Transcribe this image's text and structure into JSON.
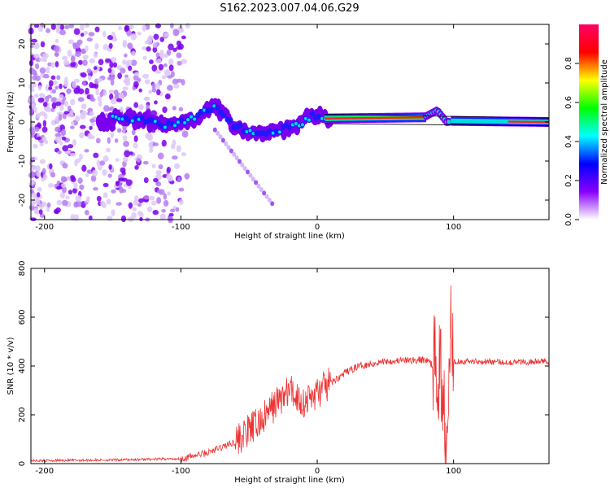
{
  "title": "S162.2023.007.04.06.G29",
  "chart_data": [
    {
      "type": "heatmap",
      "xlabel": "Height of straight line (km)",
      "ylabel": "Frequency (Hz)",
      "xlim": [
        -210,
        170
      ],
      "ylim": [
        -25,
        25
      ],
      "xticks": [
        -200,
        -100,
        0,
        100
      ],
      "yticks": [
        -20,
        -10,
        0,
        10,
        20
      ],
      "colorbar": {
        "label": "Normalized spectral amplitude",
        "range": [
          0,
          1
        ],
        "ticks": [
          0.0,
          0.2,
          0.4,
          0.6,
          0.8
        ],
        "tick_labels": [
          "0.0",
          "0.2",
          "0.4",
          "0.6",
          "0.8"
        ],
        "colors": [
          "#ffffff",
          "#8800ff",
          "#0000ff",
          "#00ffff",
          "#00ff00",
          "#ffff00",
          "#ff0000",
          "#ff0066"
        ]
      },
      "ridge": [
        {
          "x": -150,
          "freq": 1.5
        },
        {
          "x": -130,
          "freq": 0.5
        },
        {
          "x": -110,
          "freq": -1.0
        },
        {
          "x": -90,
          "freq": 1.0
        },
        {
          "x": -75,
          "freq": 4.0
        },
        {
          "x": -60,
          "freq": -1.0
        },
        {
          "x": -45,
          "freq": -3.0
        },
        {
          "x": -30,
          "freq": -2.0
        },
        {
          "x": -15,
          "freq": -1.0
        },
        {
          "x": -5,
          "freq": 1.5
        },
        {
          "x": 10,
          "freq": 0.8
        },
        {
          "x": 80,
          "freq": 1.5
        },
        {
          "x": 88,
          "freq": 3.0
        },
        {
          "x": 95,
          "freq": 0.0
        },
        {
          "x": 110,
          "freq": 0.5
        },
        {
          "x": 170,
          "freq": 0.0
        }
      ]
    },
    {
      "type": "line",
      "xlabel": "Height of straight line (km)",
      "ylabel": "SNR (10 * v/v)",
      "xlim": [
        -210,
        170
      ],
      "ylim": [
        0,
        800
      ],
      "xticks": [
        -200,
        -100,
        0,
        100
      ],
      "yticks": [
        0,
        200,
        400,
        600,
        800
      ],
      "color": "#ee3333",
      "series": [
        {
          "name": "SNR",
          "x": [
            -210,
            -150,
            -100,
            -80,
            -60,
            -40,
            -30,
            -20,
            -10,
            0,
            10,
            20,
            30,
            50,
            80,
            90,
            95,
            98,
            100,
            110,
            140,
            170
          ],
          "y": [
            12,
            15,
            20,
            45,
            90,
            180,
            250,
            300,
            250,
            290,
            330,
            370,
            400,
            420,
            425,
            380,
            150,
            600,
            420,
            420,
            415,
            420
          ]
        }
      ]
    }
  ]
}
